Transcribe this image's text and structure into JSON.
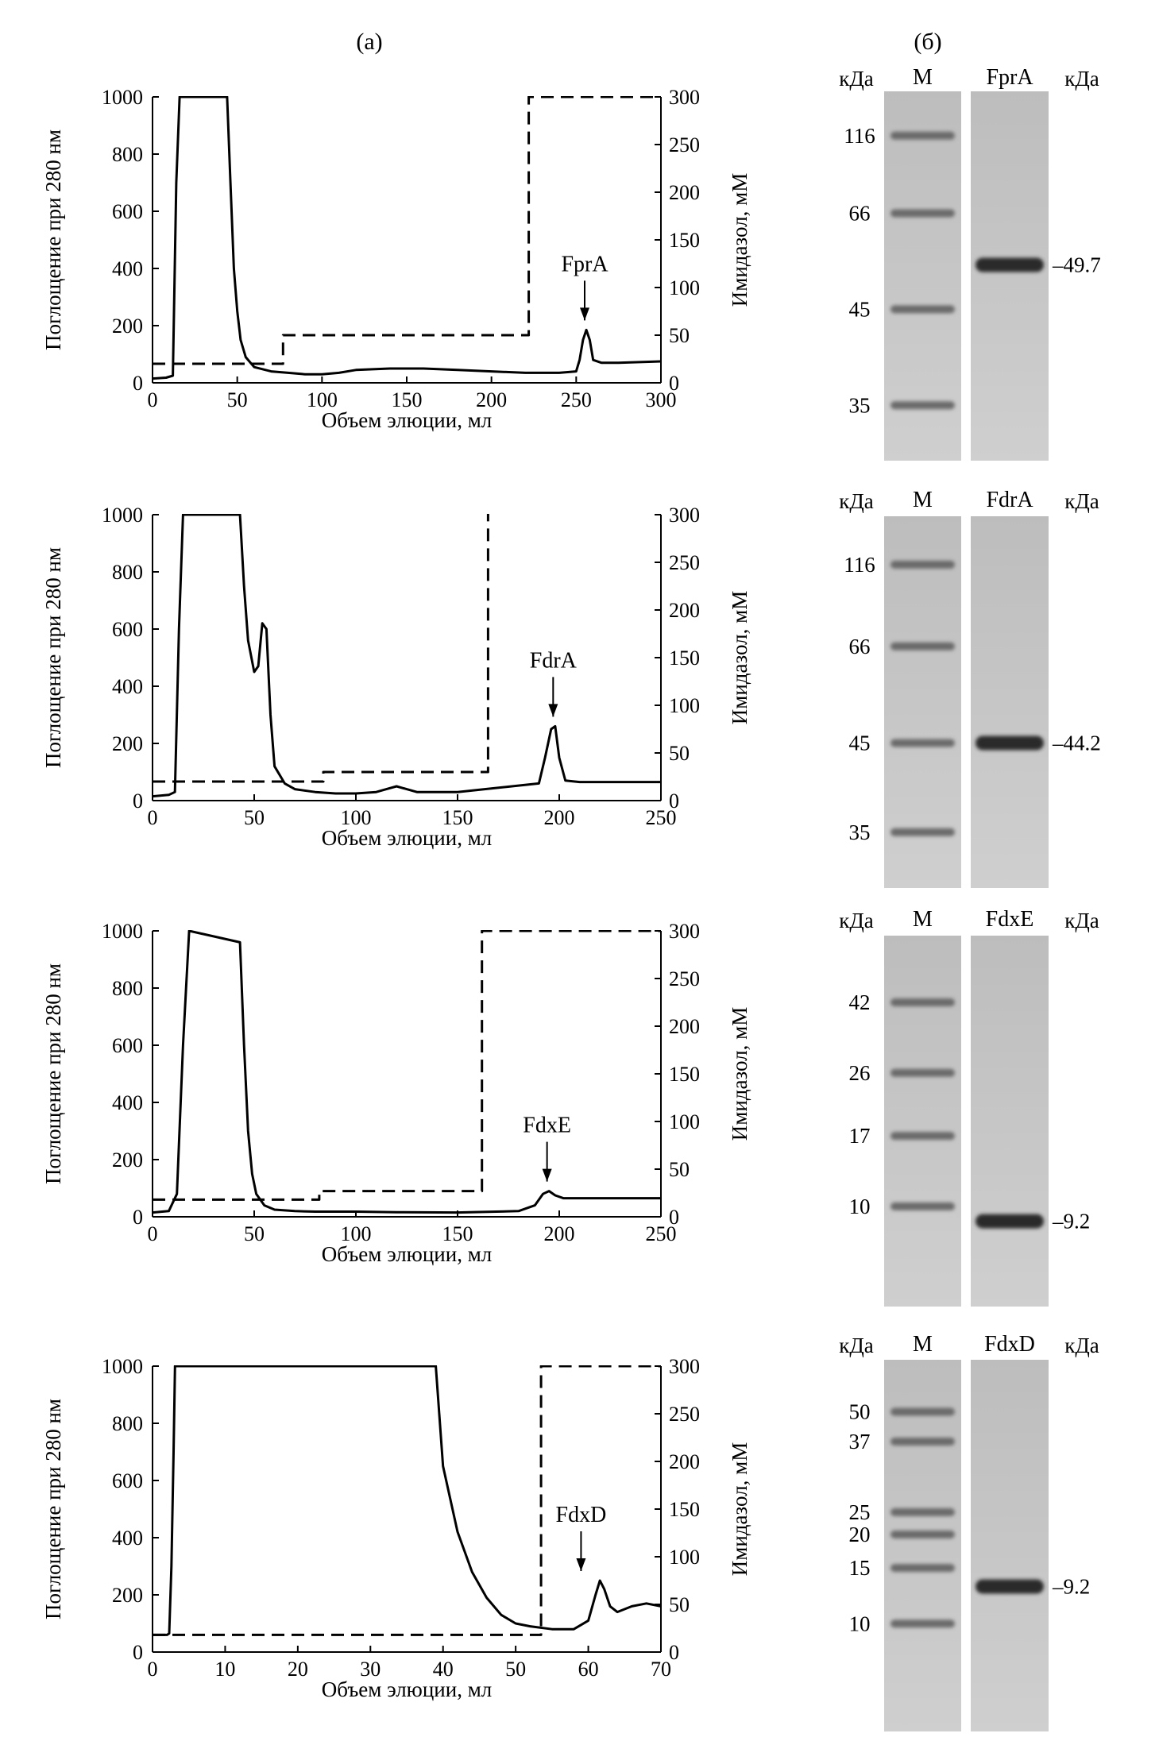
{
  "panel_a_label": "(а)",
  "panel_b_label": "(б)",
  "chart_data": [
    {
      "type": "line",
      "xlabel": "Объем элюции, мл",
      "ylabel": "Поглощение при 280 нм",
      "y2label": "Имидазол, мМ",
      "xlim": [
        0,
        300
      ],
      "ylim": [
        0,
        1000
      ],
      "y2lim": [
        0,
        300
      ],
      "xticks": [
        0,
        50,
        100,
        150,
        200,
        250,
        300
      ],
      "yticks": [
        0,
        200,
        400,
        600,
        800,
        1000
      ],
      "y2ticks": [
        0,
        50,
        100,
        150,
        200,
        250,
        300
      ],
      "grid": false,
      "annotation": {
        "text": "FprA",
        "x": 255
      },
      "series": [
        {
          "style": "solid",
          "x": [
            0,
            8,
            12,
            14,
            16,
            44,
            46,
            48,
            50,
            52,
            55,
            60,
            70,
            80,
            90,
            100,
            110,
            120,
            140,
            160,
            180,
            200,
            220,
            240,
            250,
            252,
            254,
            256,
            258,
            260,
            265,
            275,
            300
          ],
          "y": [
            15,
            18,
            25,
            700,
            1000,
            1000,
            700,
            400,
            250,
            150,
            90,
            55,
            40,
            35,
            30,
            30,
            35,
            45,
            50,
            50,
            45,
            40,
            35,
            35,
            40,
            80,
            150,
            185,
            150,
            80,
            70,
            70,
            75
          ]
        },
        {
          "style": "dashed",
          "x": [
            0,
            77,
            77,
            222,
            222,
            300
          ],
          "y": [
            20,
            20,
            50,
            50,
            300,
            300
          ]
        }
      ]
    },
    {
      "type": "line",
      "xlabel": "Объем элюции, мл",
      "ylabel": "Поглощение при 280 нм",
      "y2label": "Имидазол, мМ",
      "xlim": [
        0,
        250
      ],
      "ylim": [
        0,
        1000
      ],
      "y2lim": [
        0,
        300
      ],
      "xticks": [
        0,
        50,
        100,
        150,
        200,
        250
      ],
      "yticks": [
        0,
        200,
        400,
        600,
        800,
        1000
      ],
      "y2ticks": [
        0,
        50,
        100,
        150,
        200,
        250,
        300
      ],
      "grid": false,
      "annotation": {
        "text": "FdrA",
        "x": 197
      },
      "series": [
        {
          "style": "solid",
          "x": [
            0,
            8,
            11,
            13,
            15,
            43,
            45,
            47,
            50,
            52,
            54,
            56,
            58,
            60,
            65,
            70,
            80,
            90,
            100,
            110,
            115,
            120,
            125,
            130,
            150,
            190,
            193,
            196,
            198,
            200,
            203,
            210,
            250
          ],
          "y": [
            15,
            20,
            30,
            600,
            1000,
            1000,
            750,
            560,
            450,
            470,
            620,
            600,
            300,
            120,
            60,
            40,
            30,
            25,
            25,
            30,
            40,
            50,
            40,
            30,
            30,
            60,
            150,
            250,
            260,
            150,
            70,
            65,
            65
          ]
        },
        {
          "style": "dashed",
          "x": [
            0,
            84,
            84,
            165,
            165,
            250
          ],
          "y": [
            20,
            20,
            30,
            30,
            310,
            310
          ]
        }
      ]
    },
    {
      "type": "line",
      "xlabel": "Объем элюции, мл",
      "ylabel": "Поглощение при 280 нм",
      "y2label": "Имидазол, мМ",
      "xlim": [
        0,
        250
      ],
      "ylim": [
        0,
        1000
      ],
      "y2lim": [
        0,
        300
      ],
      "xticks": [
        0,
        50,
        100,
        150,
        200,
        250
      ],
      "yticks": [
        0,
        200,
        400,
        600,
        800,
        1000
      ],
      "y2ticks": [
        0,
        50,
        100,
        150,
        200,
        250,
        300
      ],
      "grid": false,
      "annotation": {
        "text": "FdxE",
        "x": 194
      },
      "series": [
        {
          "style": "solid",
          "x": [
            0,
            8,
            12,
            15,
            18,
            43,
            45,
            47,
            49,
            51,
            55,
            60,
            70,
            80,
            100,
            120,
            150,
            180,
            188,
            192,
            195,
            198,
            202,
            210,
            250
          ],
          "y": [
            15,
            20,
            80,
            600,
            1000,
            960,
            600,
            300,
            150,
            80,
            40,
            25,
            20,
            18,
            18,
            16,
            15,
            20,
            40,
            80,
            90,
            75,
            65,
            65,
            65
          ]
        },
        {
          "style": "dashed",
          "x": [
            0,
            82,
            82,
            162,
            162,
            250
          ],
          "y": [
            18,
            18,
            27,
            27,
            300,
            300
          ]
        }
      ]
    },
    {
      "type": "line",
      "xlabel": "Объем элюции, мл",
      "ylabel": "Поглощение при 280 нм",
      "y2label": "Имидазол, мМ",
      "xlim": [
        0,
        70
      ],
      "ylim": [
        0,
        1000
      ],
      "y2lim": [
        0,
        300
      ],
      "xticks": [
        0,
        10,
        20,
        30,
        40,
        50,
        60,
        70
      ],
      "yticks": [
        0,
        200,
        400,
        600,
        800,
        1000
      ],
      "y2ticks": [
        0,
        50,
        100,
        150,
        200,
        250,
        300
      ],
      "grid": false,
      "annotation": {
        "text": "FdxD",
        "x": 59
      },
      "series": [
        {
          "style": "solid",
          "x": [
            0,
            2,
            2.3,
            2.6,
            2.9,
            3.1,
            39,
            40,
            42,
            44,
            46,
            48,
            50,
            52,
            55,
            58,
            60,
            61,
            61.6,
            62.2,
            63,
            64,
            66,
            68,
            70
          ],
          "y": [
            60,
            60,
            65,
            300,
            700,
            1000,
            1000,
            650,
            420,
            280,
            190,
            130,
            100,
            90,
            80,
            80,
            110,
            200,
            250,
            220,
            160,
            140,
            160,
            170,
            160
          ]
        },
        {
          "style": "dashed",
          "x": [
            0,
            53.5,
            53.5,
            70
          ],
          "y": [
            18,
            18,
            300,
            300
          ]
        }
      ]
    }
  ],
  "gels": [
    {
      "lane_m_label": "М",
      "lane_s_label": "FprA",
      "kda_left": "кДа",
      "kda_right": "кДа",
      "markers": [
        {
          "label": "116",
          "rel": 0.12
        },
        {
          "label": "66",
          "rel": 0.33
        },
        {
          "label": "45",
          "rel": 0.59
        },
        {
          "label": "35",
          "rel": 0.85
        }
      ],
      "sample": {
        "label": "–49.7",
        "rel": 0.47
      }
    },
    {
      "lane_m_label": "М",
      "lane_s_label": "FdrA",
      "kda_left": "кДа",
      "kda_right": "кДа",
      "markers": [
        {
          "label": "116",
          "rel": 0.13
        },
        {
          "label": "66",
          "rel": 0.35
        },
        {
          "label": "45",
          "rel": 0.61
        },
        {
          "label": "35",
          "rel": 0.85
        }
      ],
      "sample": {
        "label": "–44.2",
        "rel": 0.61
      }
    },
    {
      "lane_m_label": "М",
      "lane_s_label": "FdxE",
      "kda_left": "кДа",
      "kda_right": "кДа",
      "markers": [
        {
          "label": "42",
          "rel": 0.18
        },
        {
          "label": "26",
          "rel": 0.37
        },
        {
          "label": "17",
          "rel": 0.54
        },
        {
          "label": "10",
          "rel": 0.73
        }
      ],
      "sample": {
        "label": "–9.2",
        "rel": 0.77
      }
    },
    {
      "lane_m_label": "М",
      "lane_s_label": "FdxD",
      "kda_left": "кДа",
      "kda_right": "кДа",
      "markers": [
        {
          "label": "50",
          "rel": 0.14
        },
        {
          "label": "37",
          "rel": 0.22
        },
        {
          "label": "25",
          "rel": 0.41
        },
        {
          "label": "20",
          "rel": 0.47
        },
        {
          "label": "15",
          "rel": 0.56
        },
        {
          "label": "10",
          "rel": 0.71
        }
      ],
      "sample": {
        "label": "–9.2",
        "rel": 0.61
      }
    }
  ]
}
